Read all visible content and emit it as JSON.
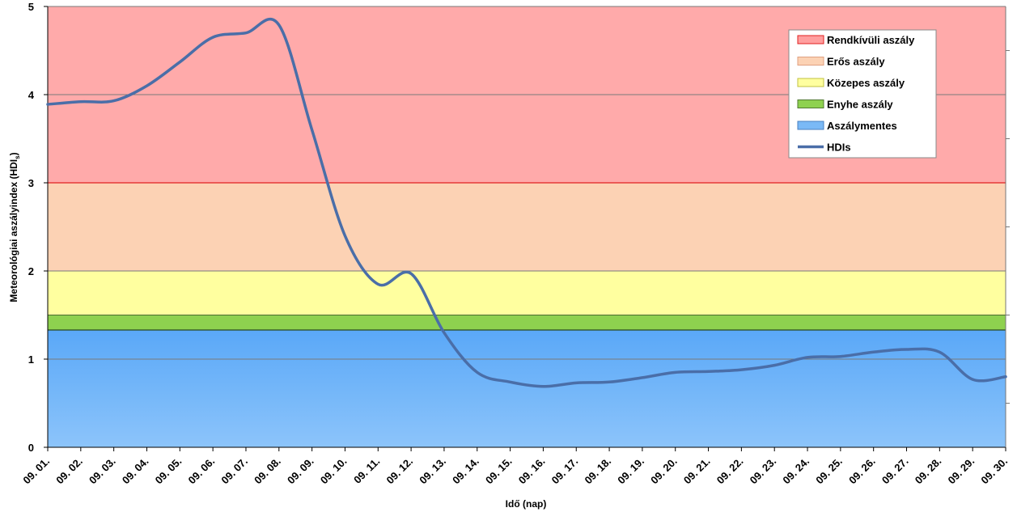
{
  "chart_data": {
    "type": "line",
    "title": "",
    "xlabel": "Idő (nap)",
    "ylabel": "Meteorológiai aszályindex (HDI",
    "ylabel_sub": "s",
    "ylabel_end": ")",
    "ylim": [
      0,
      5
    ],
    "yticks": [
      "0",
      "1",
      "2",
      "3",
      "4",
      "5"
    ],
    "categories": [
      "09. 01.",
      "09. 02.",
      "09. 03.",
      "09. 04.",
      "09. 05.",
      "09. 06.",
      "09. 07.",
      "09. 08.",
      "09. 09.",
      "09. 10.",
      "09. 11.",
      "09. 12.",
      "09. 13.",
      "09. 14.",
      "09. 15.",
      "09. 16.",
      "09. 17.",
      "09. 18.",
      "09. 19.",
      "09. 20.",
      "09. 21.",
      "09. 22.",
      "09. 23.",
      "09. 24.",
      "09. 25.",
      "09. 26.",
      "09. 27.",
      "09. 28.",
      "09. 29.",
      "09. 30."
    ],
    "bands": [
      {
        "name": "Rendkívüli aszály",
        "from": 3,
        "to": 5,
        "color": "#ffaaaa",
        "swatch": "#ff9f9f",
        "border": "#e02020"
      },
      {
        "name": "Erős aszály",
        "from": 2,
        "to": 3,
        "color": "#fcd2b4",
        "swatch": "#fcd2b4",
        "border": "#e0a080"
      },
      {
        "name": "Közepes aszály",
        "from": 1.5,
        "to": 2,
        "color": "#ffff9f",
        "swatch": "#ffff9f",
        "border": "#c0c040"
      },
      {
        "name": "Enyhe aszály",
        "from": 1.33,
        "to": 1.5,
        "color": "#8ed14f",
        "swatch": "#8ed14f",
        "border": "#507a30"
      },
      {
        "name": "Aszálymentes",
        "from": 0,
        "to": 1.33,
        "color": "#66b0f8",
        "swatch": "#7ab9f6",
        "border": "#4a80c0"
      }
    ],
    "series": [
      {
        "name": "HDIs",
        "color": "#4a6ea8",
        "values": [
          3.89,
          3.92,
          3.93,
          4.1,
          4.37,
          4.65,
          4.7,
          4.79,
          3.6,
          2.4,
          1.85,
          1.97,
          1.3,
          0.85,
          0.74,
          0.69,
          0.73,
          0.74,
          0.79,
          0.85,
          0.86,
          0.88,
          0.93,
          1.02,
          1.03,
          1.08,
          1.11,
          1.08,
          0.77,
          0.8
        ]
      }
    ],
    "legend_position": "top-right",
    "grid": true
  }
}
